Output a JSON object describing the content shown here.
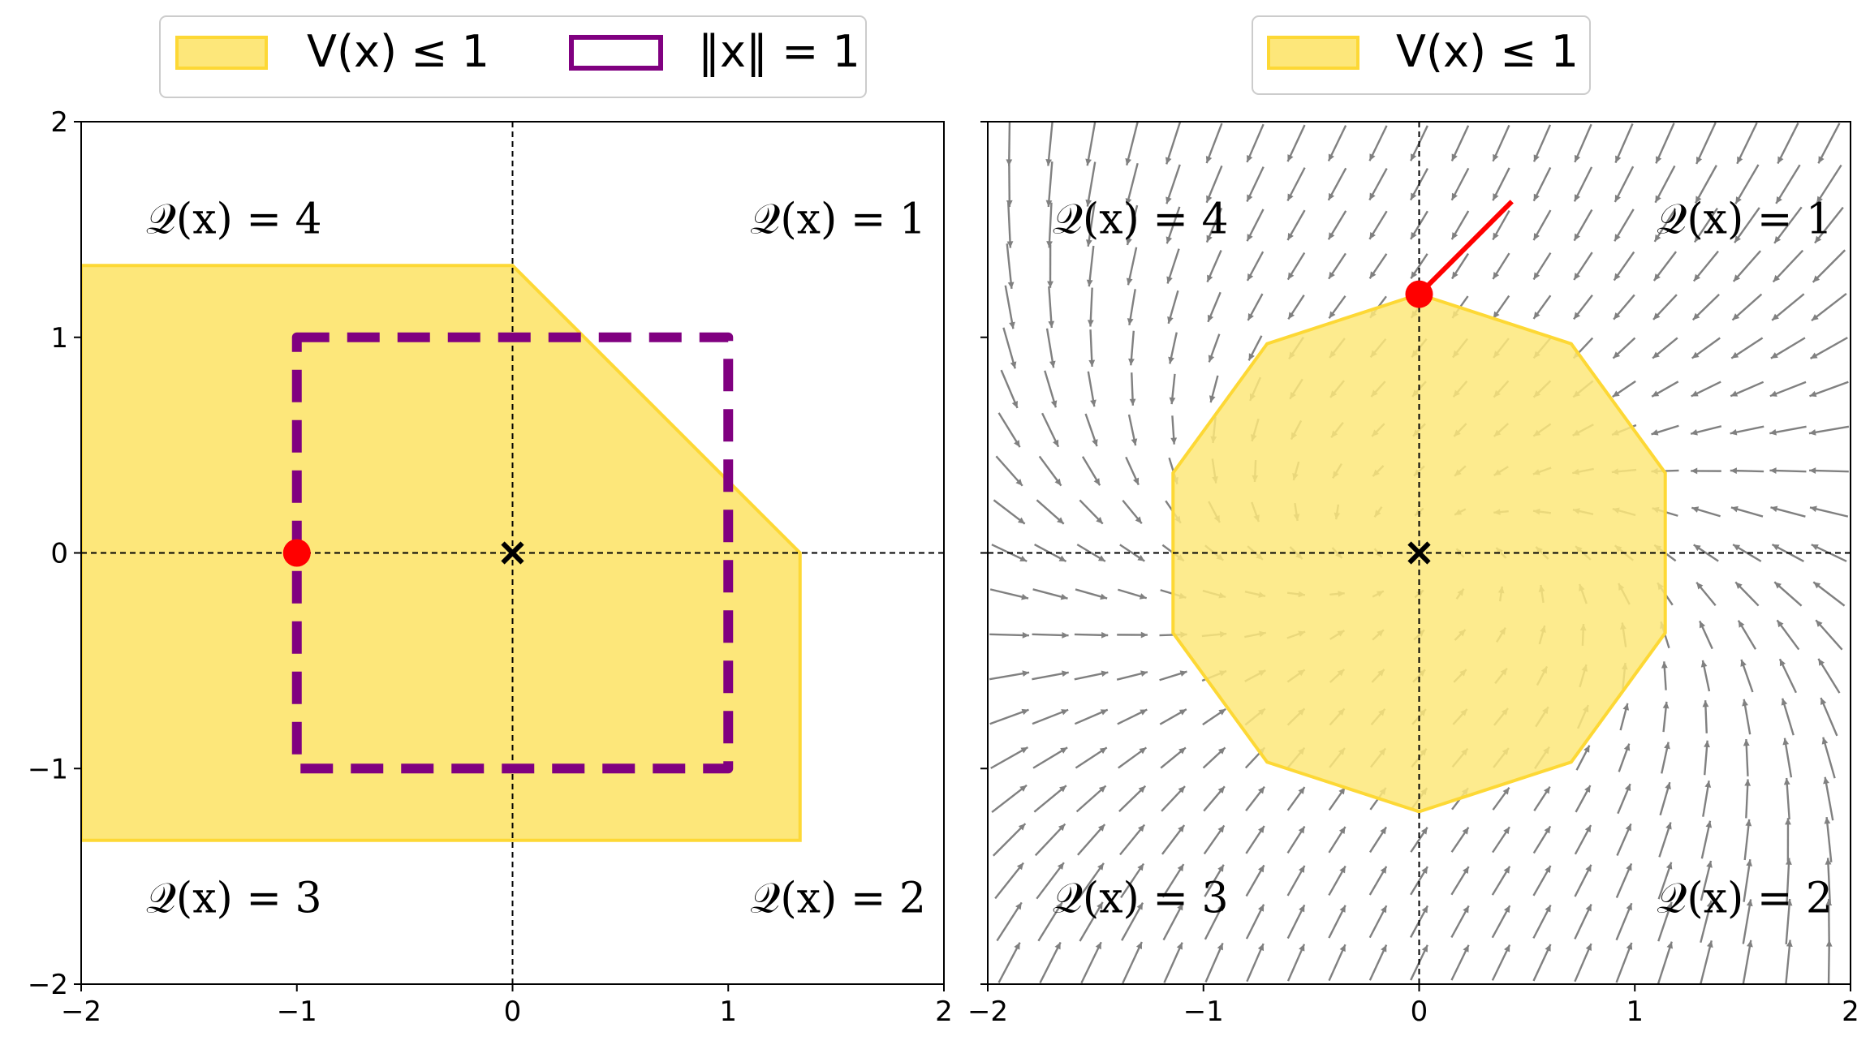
{
  "chart_data": [
    {
      "type": "area",
      "title": "",
      "xlabel": "",
      "ylabel": "",
      "xlim": [
        -2,
        2
      ],
      "ylim": [
        -2,
        2
      ],
      "xticks": [
        -2,
        -1,
        0,
        1,
        2
      ],
      "yticks": [
        -2,
        -1,
        0,
        1,
        2
      ],
      "xtick_labels": [
        "−2",
        "−1",
        "0",
        "1",
        "2"
      ],
      "ytick_labels": [
        "−2",
        "−1",
        "0",
        "1",
        "2"
      ],
      "grid": false,
      "legend_position": "top-center",
      "legend": [
        {
          "label": "V(x) ≤ 1",
          "style": "filled",
          "color": "#fde77a",
          "edge": "#fdd835"
        },
        {
          "label": "‖x‖ = 1",
          "style": "outline",
          "color": "#800080"
        }
      ],
      "quadrant_labels": [
        {
          "text": "𝒬(x) = 4",
          "quadrant": "top-left"
        },
        {
          "text": "𝒬(x) = 1",
          "quadrant": "top-right"
        },
        {
          "text": "𝒬(x) = 3",
          "quadrant": "bottom-left"
        },
        {
          "text": "𝒬(x) = 2",
          "quadrant": "bottom-right"
        }
      ],
      "level_set": [
        [
          -2,
          1.333
        ],
        [
          0,
          1.333
        ],
        [
          1.333,
          0
        ],
        [
          1.333,
          -1.333
        ],
        [
          -2,
          -1.333
        ]
      ],
      "unit_ball": [
        [
          -1,
          1
        ],
        [
          1,
          1
        ],
        [
          1,
          -1
        ],
        [
          -1,
          -1
        ]
      ],
      "point": [
        -1,
        0
      ],
      "origin_marker": [
        0,
        0
      ]
    },
    {
      "type": "area",
      "title": "",
      "xlabel": "",
      "ylabel": "",
      "xlim": [
        -2,
        2
      ],
      "ylim": [
        -2,
        2
      ],
      "xticks": [
        -2,
        -1,
        0,
        1,
        2
      ],
      "xtick_labels": [
        "−2",
        "−1",
        "0",
        "1",
        "2"
      ],
      "grid": false,
      "legend_position": "top-center",
      "legend": [
        {
          "label": "V(x) ≤ 1",
          "style": "filled",
          "color": "#fde77a",
          "edge": "#fdd835"
        }
      ],
      "quadrant_labels": [
        {
          "text": "𝒬(x) = 4",
          "quadrant": "top-left"
        },
        {
          "text": "𝒬(x) = 1",
          "quadrant": "top-right"
        },
        {
          "text": "𝒬(x) = 3",
          "quadrant": "bottom-left"
        },
        {
          "text": "𝒬(x) = 2",
          "quadrant": "bottom-right"
        }
      ],
      "level_set": [
        [
          0,
          1.2
        ],
        [
          0.705,
          0.97
        ],
        [
          1.141,
          0.371
        ],
        [
          1.141,
          -0.371
        ],
        [
          0.705,
          -0.97
        ],
        [
          0,
          -1.2
        ],
        [
          -0.705,
          -0.97
        ],
        [
          -1.141,
          -0.371
        ],
        [
          -1.141,
          0.371
        ],
        [
          -0.705,
          0.97
        ]
      ],
      "point": [
        0,
        1.2
      ],
      "ray": [
        [
          0,
          1.2
        ],
        [
          0.43,
          1.63
        ]
      ],
      "origin_marker": [
        0,
        0
      ],
      "vector_field": {
        "grid_n": 21,
        "range": [
          -1.9,
          1.9
        ],
        "color": "#808080"
      }
    }
  ]
}
